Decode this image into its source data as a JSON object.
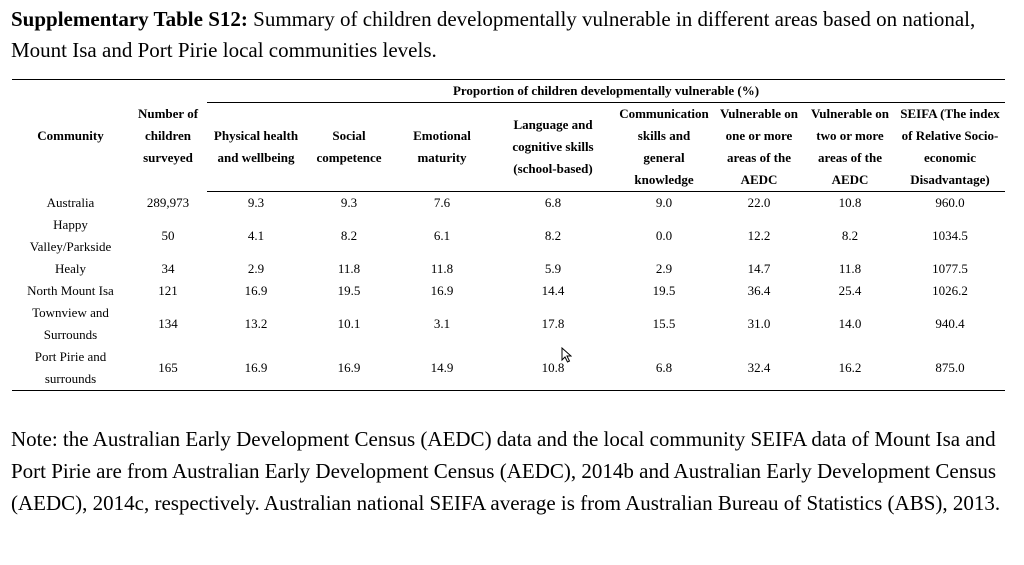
{
  "caption": {
    "label": "Supplementary Table S12:",
    "text": " Summary of children developmentally vulnerable in different areas based on national, Mount Isa and Port Pirie local communities levels."
  },
  "table": {
    "group_header": "Proportion of children developmentally vulnerable (%)",
    "columns": {
      "community": "Community",
      "surveyed": "Number of children surveyed",
      "physical": "Physical health and wellbeing",
      "social": "Social competence",
      "emotional": "Emotional maturity",
      "language": "Language and cognitive skills (school-based)",
      "communication": "Communication skills and general knowledge",
      "one_or_more": "Vulnerable on one or more areas of the AEDC",
      "two_or_more": "Vulnerable on two or more areas of the AEDC",
      "seifa": "SEIFA (The index of Relative Socio-economic Disadvantage)"
    },
    "rows": [
      {
        "community": "Australia",
        "surveyed": "289,973",
        "physical": "9.3",
        "social": "9.3",
        "emotional": "7.6",
        "language": "6.8",
        "communication": "9.0",
        "one": "22.0",
        "two": "10.8",
        "seifa": "960.0"
      },
      {
        "community": "Happy Valley/Parkside",
        "surveyed": "50",
        "physical": "4.1",
        "social": "8.2",
        "emotional": "6.1",
        "language": "8.2",
        "communication": "0.0",
        "one": "12.2",
        "two": "8.2",
        "seifa": "1034.5"
      },
      {
        "community": "Healy",
        "surveyed": "34",
        "physical": "2.9",
        "social": "11.8",
        "emotional": "11.8",
        "language": "5.9",
        "communication": "2.9",
        "one": "14.7",
        "two": "11.8",
        "seifa": "1077.5"
      },
      {
        "community": "North Mount Isa",
        "surveyed": "121",
        "physical": "16.9",
        "social": "19.5",
        "emotional": "16.9",
        "language": "14.4",
        "communication": "19.5",
        "one": "36.4",
        "two": "25.4",
        "seifa": "1026.2"
      },
      {
        "community": "Townview and Surrounds",
        "surveyed": "134",
        "physical": "13.2",
        "social": "10.1",
        "emotional": "3.1",
        "language": "17.8",
        "communication": "15.5",
        "one": "31.0",
        "two": "14.0",
        "seifa": "940.4"
      },
      {
        "community": "Port Pirie and surrounds",
        "surveyed": "165",
        "physical": "16.9",
        "social": "16.9",
        "emotional": "14.9",
        "language": "10.8",
        "communication": "6.8",
        "one": "32.4",
        "two": "16.2",
        "seifa": "875.0"
      }
    ]
  },
  "note": "Note: the Australian Early Development Census (AEDC) data and the local community SEIFA data of Mount Isa and Port Pirie are from Australian Early Development Census (AEDC), 2014b and Australian Early Development Census (AEDC), 2014c, respectively. Australian national SEIFA average is from Australian Bureau of Statistics (ABS), 2013."
}
